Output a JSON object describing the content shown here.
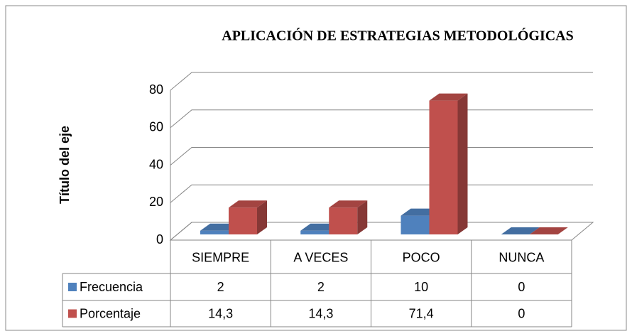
{
  "chart_data": {
    "type": "bar3d",
    "title": "APLICACIÓN DE ESTRATEGIAS METODOLÓGICAS",
    "y_axis_label": "Título del eje",
    "categories": [
      "SIEMPRE",
      "A VECES",
      "POCO",
      "NUNCA"
    ],
    "series": [
      {
        "name": "Frecuencia",
        "color": "#4f81bd",
        "values": [
          2,
          2,
          10,
          0
        ],
        "value_labels": [
          "2",
          "2",
          "10",
          "0"
        ]
      },
      {
        "name": "Porcentaje",
        "color": "#c0504d",
        "values": [
          14.3,
          14.3,
          71.4,
          0
        ],
        "value_labels": [
          "14,3",
          "14,3",
          "71,4",
          "0"
        ]
      }
    ],
    "ylim": [
      0,
      80
    ],
    "yticks": [
      0,
      20,
      40,
      60,
      80
    ],
    "grid": true
  }
}
